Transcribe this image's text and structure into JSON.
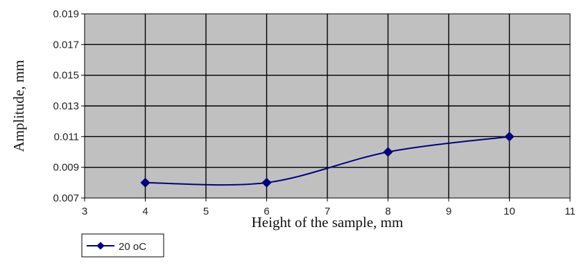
{
  "chart_data": {
    "type": "line",
    "xlabel": "Height of the sample, mm",
    "ylabel": "Amplitude, mm",
    "xlim": [
      3,
      11
    ],
    "ylim": [
      0.007,
      0.019
    ],
    "x_ticks": [
      "3",
      "4",
      "5",
      "6",
      "7",
      "8",
      "9",
      "10",
      "11"
    ],
    "y_ticks": [
      "0.007",
      "0.009",
      "0.011",
      "0.013",
      "0.015",
      "0.017",
      "0.019"
    ],
    "grid": true,
    "smoothed": true,
    "legend_position": "bottom-left",
    "series": [
      {
        "name": "20 oC",
        "x": [
          4,
          6,
          8,
          10
        ],
        "y": [
          0.008,
          0.008,
          0.01,
          0.011
        ]
      }
    ]
  },
  "colors": {
    "plot_background": "#c0c0c0",
    "series_line": "#000080",
    "grid": "#000000"
  }
}
